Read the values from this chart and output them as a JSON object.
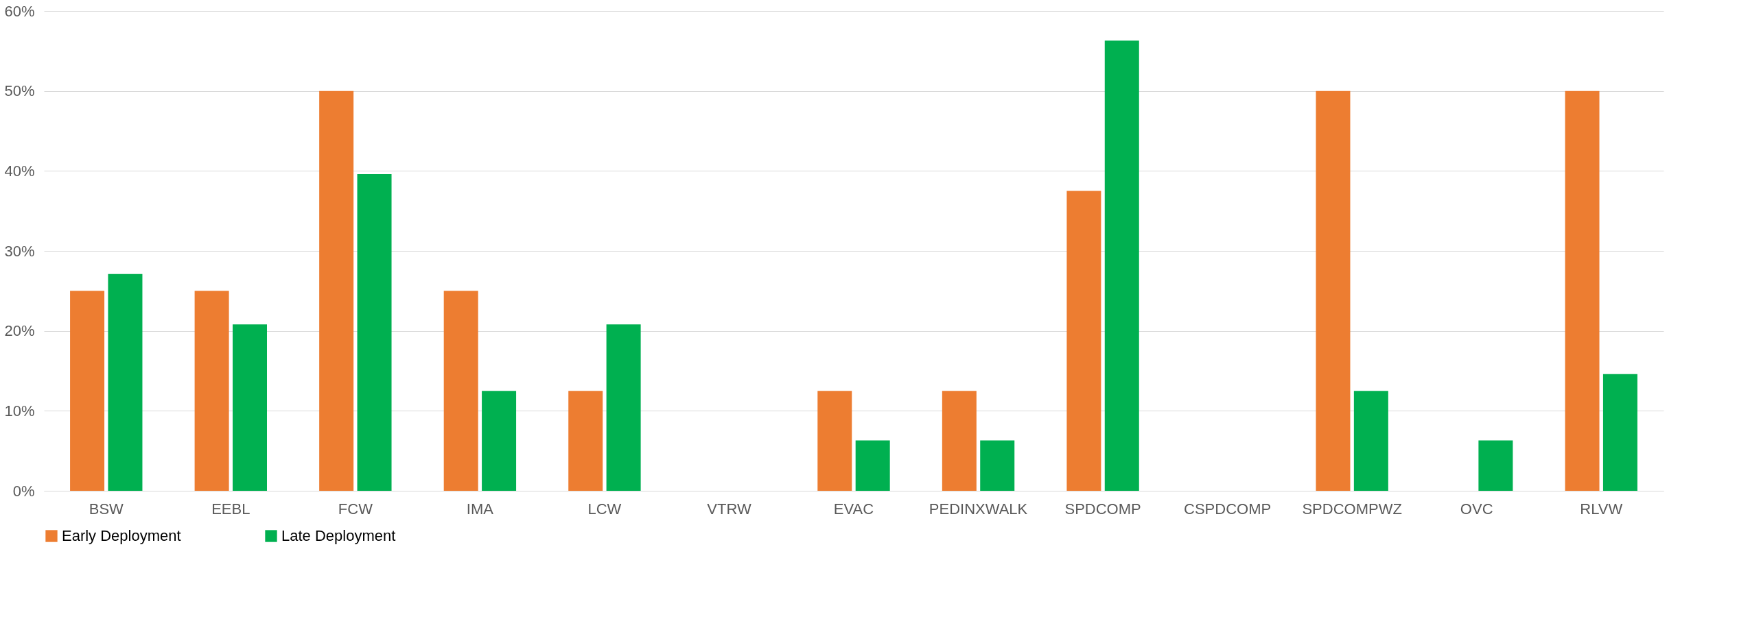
{
  "chart_data": {
    "type": "bar",
    "categories": [
      "BSW",
      "EEBL",
      "FCW",
      "IMA",
      "LCW",
      "VTRW",
      "EVAC",
      "PEDINXWALK",
      "SPDCOMP",
      "CSPDCOMP",
      "SPDCOMPWZ",
      "OVC",
      "RLVW"
    ],
    "series": [
      {
        "name": "Early Deployment",
        "color": "#ed7d31",
        "values": [
          25,
          25,
          50,
          25,
          12.5,
          0,
          12.5,
          12.5,
          37.5,
          0,
          50,
          0,
          50
        ]
      },
      {
        "name": "Late Deployment",
        "color": "#00b050",
        "values": [
          27.1,
          20.8,
          39.6,
          12.5,
          20.8,
          0,
          6.3,
          6.3,
          56.3,
          0,
          12.5,
          6.3,
          14.6
        ]
      }
    ],
    "ylim": [
      0,
      60
    ],
    "yticks": [
      {
        "value": 0,
        "label": "0%"
      },
      {
        "value": 10,
        "label": "10%"
      },
      {
        "value": 20,
        "label": "20%"
      },
      {
        "value": 30,
        "label": "30%"
      },
      {
        "value": 40,
        "label": "40%"
      },
      {
        "value": 50,
        "label": "50%"
      },
      {
        "value": 60,
        "label": "60%"
      }
    ],
    "grid": "y",
    "legend": "bottom"
  }
}
